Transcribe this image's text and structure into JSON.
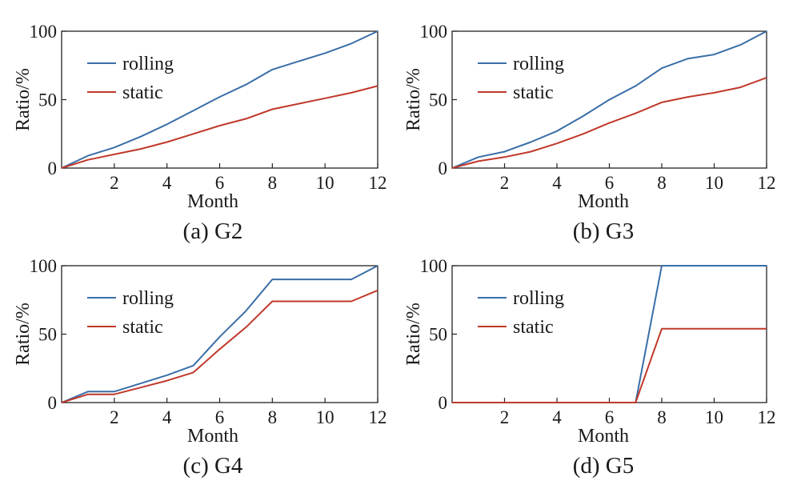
{
  "chart_data": [
    {
      "type": "line",
      "caption": "(a) G2",
      "xlabel": "Month",
      "ylabel": "Ratio/%",
      "xlim": [
        0,
        12
      ],
      "ylim": [
        0,
        100
      ],
      "xticks": [
        2,
        4,
        6,
        8,
        10,
        12
      ],
      "yticks": [
        0,
        50,
        100
      ],
      "legend": "upper-left",
      "x": [
        0,
        1,
        2,
        3,
        4,
        5,
        6,
        7,
        8,
        9,
        10,
        11,
        12
      ],
      "series": [
        {
          "name": "rolling",
          "color": "#3a6ea8",
          "values": [
            0,
            9,
            15,
            23,
            32,
            42,
            52,
            61,
            72,
            78,
            84,
            91,
            100
          ]
        },
        {
          "name": "static",
          "color": "#c0392b",
          "values": [
            0,
            6,
            10,
            14,
            19,
            25,
            31,
            36,
            43,
            47,
            51,
            55,
            60
          ]
        }
      ]
    },
    {
      "type": "line",
      "caption": "(b) G3",
      "xlabel": "Month",
      "ylabel": "Ratio/%",
      "xlim": [
        0,
        12
      ],
      "ylim": [
        0,
        100
      ],
      "xticks": [
        2,
        4,
        6,
        8,
        10,
        12
      ],
      "yticks": [
        0,
        50,
        100
      ],
      "legend": "upper-left",
      "x": [
        0,
        1,
        2,
        3,
        4,
        5,
        6,
        7,
        8,
        9,
        10,
        11,
        12
      ],
      "series": [
        {
          "name": "rolling",
          "color": "#3a6ea8",
          "values": [
            0,
            8,
            12,
            19,
            27,
            38,
            50,
            60,
            73,
            80,
            83,
            90,
            100
          ]
        },
        {
          "name": "static",
          "color": "#c0392b",
          "values": [
            0,
            5,
            8,
            12,
            18,
            25,
            33,
            40,
            48,
            52,
            55,
            59,
            66
          ]
        }
      ]
    },
    {
      "type": "line",
      "caption": "(c) G4",
      "xlabel": "Month",
      "ylabel": "Ratio/%",
      "xlim": [
        0,
        12
      ],
      "ylim": [
        0,
        100
      ],
      "xticks": [
        2,
        4,
        6,
        8,
        10,
        12
      ],
      "yticks": [
        0,
        50,
        100
      ],
      "legend": "upper-left",
      "x": [
        0,
        1,
        2,
        3,
        4,
        5,
        6,
        7,
        8,
        9,
        10,
        11,
        12
      ],
      "series": [
        {
          "name": "rolling",
          "color": "#3a6ea8",
          "values": [
            0,
            8,
            8,
            14,
            20,
            27,
            48,
            67,
            90,
            90,
            90,
            90,
            100
          ]
        },
        {
          "name": "static",
          "color": "#c0392b",
          "values": [
            0,
            6,
            6,
            11,
            16,
            22,
            39,
            55,
            74,
            74,
            74,
            74,
            82
          ]
        }
      ]
    },
    {
      "type": "line",
      "caption": "(d) G5",
      "xlabel": "Month",
      "ylabel": "Ratio/%",
      "xlim": [
        0,
        12
      ],
      "ylim": [
        0,
        100
      ],
      "xticks": [
        2,
        4,
        6,
        8,
        10,
        12
      ],
      "yticks": [
        0,
        50,
        100
      ],
      "legend": "upper-left",
      "x": [
        0,
        1,
        2,
        3,
        4,
        5,
        6,
        7,
        8,
        9,
        10,
        11,
        12
      ],
      "series": [
        {
          "name": "rolling",
          "color": "#3a6ea8",
          "values": [
            0,
            0,
            0,
            0,
            0,
            0,
            0,
            0,
            100,
            100,
            100,
            100,
            100
          ]
        },
        {
          "name": "static",
          "color": "#c0392b",
          "values": [
            0,
            0,
            0,
            0,
            0,
            0,
            0,
            0,
            54,
            54,
            54,
            54,
            54
          ]
        }
      ]
    }
  ]
}
